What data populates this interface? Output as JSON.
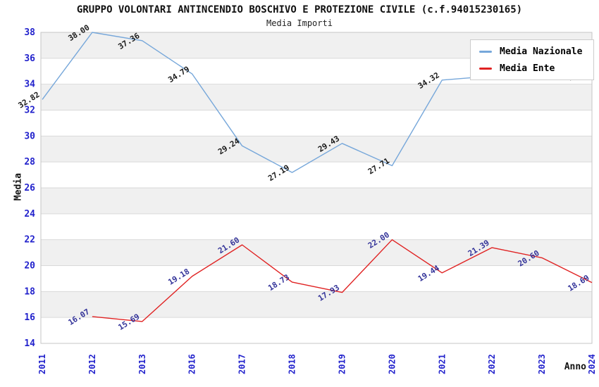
{
  "header": {
    "title": "GRUPPO VOLONTARI ANTINCENDIO BOSCHIVO E PROTEZIONE CIVILE (c.f.94015230165)",
    "subtitle": "Media Importi"
  },
  "colors": {
    "nazionale_line": "#76a7da",
    "ente_line": "#e02222",
    "axis_tick_text": "#2222cc",
    "nazionale_label_text": "#1a1a1a",
    "ente_label_text": "#333399",
    "band": "#f0f0f0",
    "gridline": "#d9d9d9",
    "plot_border": "#c6c6c6",
    "legend_border": "#cccccc"
  },
  "chart_data": {
    "type": "line",
    "title": "GRUPPO VOLONTARI ANTINCENDIO BOSCHIVO E PROTEZIONE CIVILE (c.f.94015230165)",
    "subtitle": "Media Importi",
    "xlabel": "Anno",
    "ylabel": "Media",
    "ylim": [
      14,
      38
    ],
    "ytick_step": 2,
    "grid": "on",
    "banded_background": true,
    "legend_position": "top-right",
    "categories": [
      "2011",
      "2012",
      "2013",
      "2016",
      "2017",
      "2018",
      "2019",
      "2020",
      "2021",
      "2022",
      "2023",
      "2024"
    ],
    "series": [
      {
        "name": "Media Nazionale",
        "color": "#76a7da",
        "label_color": "#1a1a1a",
        "values": [
          32.82,
          38.0,
          37.36,
          34.79,
          29.24,
          27.19,
          29.43,
          27.71,
          34.32,
          34.63,
          34.82,
          34.94
        ],
        "labels": [
          "32.82",
          "38.00",
          "37.36",
          "34.79",
          "29.24",
          "27.19",
          "29.43",
          "27.71",
          "34.32",
          "",
          "",
          "34.94"
        ]
      },
      {
        "name": "Media Ente",
        "color": "#e02222",
        "label_color": "#333399",
        "values": [
          null,
          16.07,
          15.69,
          19.18,
          21.6,
          18.73,
          17.93,
          22.0,
          19.44,
          21.39,
          20.6,
          18.69
        ],
        "labels": [
          "",
          "16.07",
          "15.69",
          "19.18",
          "21.60",
          "18.73",
          "17.93",
          "22.00",
          "19.44",
          "21.39",
          "20.60",
          "18.69"
        ]
      }
    ]
  }
}
